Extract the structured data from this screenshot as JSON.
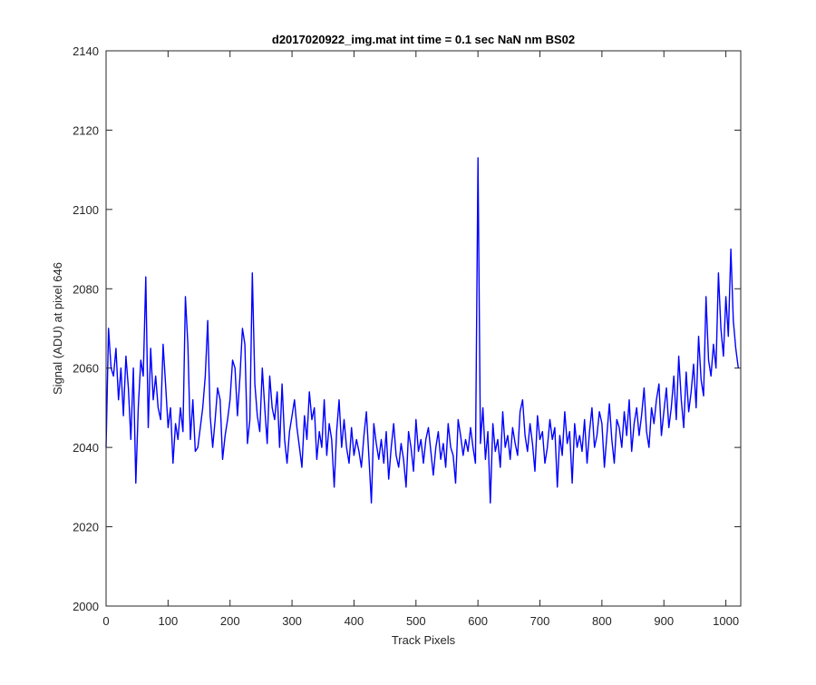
{
  "chart_data": {
    "type": "line",
    "title": "d2017020922_img.mat int time = 0.1 sec  NaN nm BS02",
    "xlabel": "Track Pixels",
    "ylabel": "Signal (ADU) at pixel 646",
    "xlim": [
      0,
      1024
    ],
    "ylim": [
      2000,
      2140
    ],
    "x_ticks": [
      0,
      100,
      200,
      300,
      400,
      500,
      600,
      700,
      800,
      900,
      1000
    ],
    "y_ticks": [
      2000,
      2020,
      2040,
      2060,
      2080,
      2100,
      2120,
      2140
    ],
    "grid": false,
    "line_color": "#0000ff",
    "series": [
      {
        "x_start": 0,
        "x_step": 4,
        "values": [
          2040,
          2070,
          2060,
          2058,
          2065,
          2052,
          2060,
          2048,
          2063,
          2055,
          2042,
          2060,
          2031,
          2050,
          2062,
          2058,
          2083,
          2045,
          2065,
          2052,
          2058,
          2050,
          2047,
          2066,
          2056,
          2045,
          2050,
          2036,
          2046,
          2042,
          2050,
          2044,
          2078,
          2066,
          2042,
          2052,
          2039,
          2040,
          2045,
          2050,
          2058,
          2072,
          2048,
          2040,
          2047,
          2055,
          2052,
          2037,
          2043,
          2047,
          2052,
          2062,
          2060,
          2048,
          2058,
          2070,
          2066,
          2041,
          2047,
          2084,
          2056,
          2048,
          2044,
          2060,
          2050,
          2041,
          2058,
          2050,
          2047,
          2054,
          2040,
          2056,
          2042,
          2036,
          2044,
          2048,
          2052,
          2045,
          2040,
          2035,
          2048,
          2042,
          2054,
          2047,
          2050,
          2037,
          2044,
          2040,
          2052,
          2038,
          2046,
          2042,
          2030,
          2044,
          2052,
          2040,
          2047,
          2040,
          2036,
          2045,
          2038,
          2042,
          2039,
          2035,
          2043,
          2049,
          2038,
          2026,
          2046,
          2041,
          2037,
          2042,
          2036,
          2044,
          2032,
          2040,
          2046,
          2038,
          2035,
          2041,
          2037,
          2030,
          2044,
          2040,
          2034,
          2047,
          2039,
          2042,
          2036,
          2042,
          2045,
          2039,
          2033,
          2040,
          2044,
          2037,
          2041,
          2035,
          2046,
          2040,
          2038,
          2031,
          2047,
          2043,
          2038,
          2042,
          2039,
          2045,
          2040,
          2036,
          2113,
          2041,
          2050,
          2037,
          2044,
          2026,
          2046,
          2039,
          2042,
          2035,
          2049,
          2040,
          2043,
          2037,
          2045,
          2041,
          2038,
          2049,
          2052,
          2043,
          2039,
          2046,
          2041,
          2034,
          2048,
          2042,
          2044,
          2036,
          2040,
          2047,
          2042,
          2045,
          2030,
          2043,
          2038,
          2049,
          2041,
          2044,
          2031,
          2046,
          2040,
          2043,
          2039,
          2047,
          2036,
          2044,
          2050,
          2040,
          2043,
          2049,
          2046,
          2035,
          2043,
          2051,
          2042,
          2036,
          2047,
          2045,
          2040,
          2049,
          2043,
          2052,
          2039,
          2046,
          2050,
          2043,
          2048,
          2055,
          2044,
          2040,
          2050,
          2046,
          2052,
          2056,
          2043,
          2049,
          2055,
          2045,
          2050,
          2058,
          2047,
          2063,
          2052,
          2045,
          2059,
          2049,
          2054,
          2061,
          2050,
          2068,
          2057,
          2053,
          2078,
          2062,
          2058,
          2066,
          2060,
          2084,
          2070,
          2063,
          2078,
          2068,
          2090,
          2072,
          2065,
          2060
        ]
      }
    ]
  }
}
